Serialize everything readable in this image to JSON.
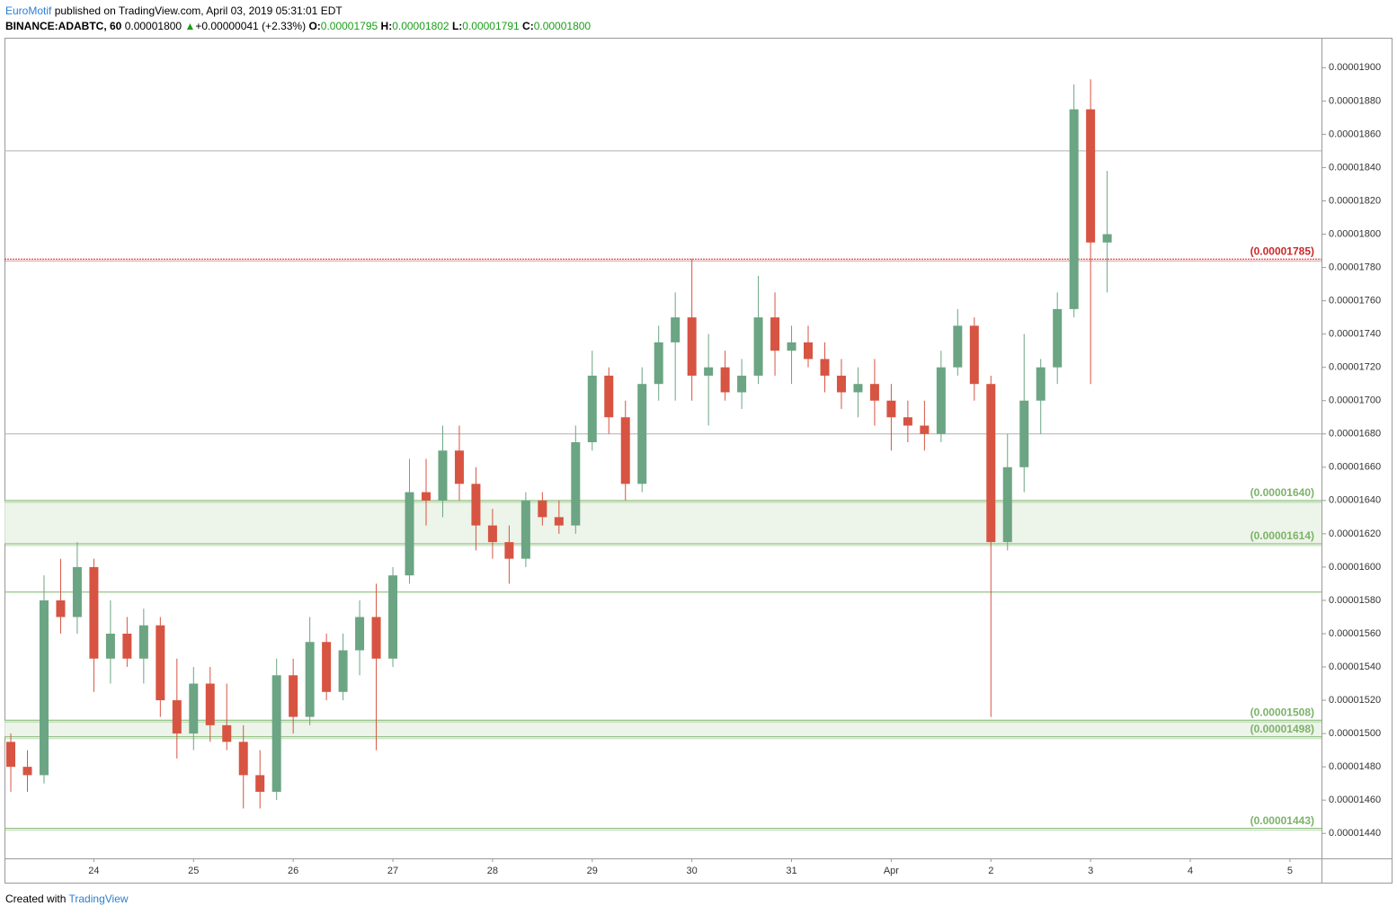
{
  "header": {
    "author": "EuroMotif",
    "published": "published on TradingView.com, April 03, 2019 05:31:01 EDT",
    "symbol": "BINANCE:ADABTC, 60",
    "last": "0.00001800",
    "arrow": "▲",
    "change": "+0.00000041 (+2.33%)",
    "open_label": "O:",
    "open": "0.00001795",
    "high_label": "H:",
    "high": "0.00001802",
    "low_label": "L:",
    "low": "0.00001791",
    "close_label": "C:",
    "close": "0.00001800"
  },
  "footer": {
    "created": "Created with",
    "brand": "TradingView"
  },
  "chart_data": {
    "type": "candlestick",
    "up_color": "#6ba583",
    "down_color": "#d75442",
    "ylim": [
      1.425e-05,
      1.918e-05
    ],
    "xlim": [
      -0.38,
      78.9
    ],
    "yticks": [
      {
        "value": 1.44e-05,
        "label": "0.00001440"
      },
      {
        "value": 1.46e-05,
        "label": "0.00001460"
      },
      {
        "value": 1.48e-05,
        "label": "0.00001480"
      },
      {
        "value": 1.5e-05,
        "label": "0.00001500"
      },
      {
        "value": 1.52e-05,
        "label": "0.00001520"
      },
      {
        "value": 1.54e-05,
        "label": "0.00001540"
      },
      {
        "value": 1.56e-05,
        "label": "0.00001560"
      },
      {
        "value": 1.58e-05,
        "label": "0.00001580"
      },
      {
        "value": 1.6e-05,
        "label": "0.00001600"
      },
      {
        "value": 1.62e-05,
        "label": "0.00001620"
      },
      {
        "value": 1.64e-05,
        "label": "0.00001640"
      },
      {
        "value": 1.66e-05,
        "label": "0.00001660"
      },
      {
        "value": 1.68e-05,
        "label": "0.00001680"
      },
      {
        "value": 1.7e-05,
        "label": "0.00001700"
      },
      {
        "value": 1.72e-05,
        "label": "0.00001720"
      },
      {
        "value": 1.74e-05,
        "label": "0.00001740"
      },
      {
        "value": 1.76e-05,
        "label": "0.00001760"
      },
      {
        "value": 1.78e-05,
        "label": "0.00001780"
      },
      {
        "value": 1.8e-05,
        "label": "0.00001800"
      },
      {
        "value": 1.82e-05,
        "label": "0.00001820"
      },
      {
        "value": 1.84e-05,
        "label": "0.00001840"
      },
      {
        "value": 1.86e-05,
        "label": "0.00001860"
      },
      {
        "value": 1.88e-05,
        "label": "0.00001880"
      },
      {
        "value": 1.9e-05,
        "label": "0.00001900"
      }
    ],
    "xticks": [
      {
        "value": 5,
        "label": "24"
      },
      {
        "value": 11,
        "label": "25"
      },
      {
        "value": 17,
        "label": "26"
      },
      {
        "value": 23,
        "label": "27"
      },
      {
        "value": 29,
        "label": "28"
      },
      {
        "value": 35,
        "label": "29"
      },
      {
        "value": 41,
        "label": "30"
      },
      {
        "value": 47,
        "label": "31"
      },
      {
        "value": 53,
        "label": "Apr"
      },
      {
        "value": 59,
        "label": "2"
      },
      {
        "value": 65,
        "label": "3"
      },
      {
        "value": 71,
        "label": "4"
      },
      {
        "value": 77,
        "label": "5"
      }
    ],
    "lines": [
      {
        "value": 1.85e-05,
        "color": "#b0b0b0"
      },
      {
        "value": 1.68e-05,
        "color": "#b0b0b0"
      },
      {
        "value": 1.585e-05,
        "color": "#7cb36a"
      }
    ],
    "levels": [
      {
        "value": 1.785e-05,
        "label": "(0.00001785)",
        "color": "#cc2a2a"
      },
      {
        "value": 1.64e-05,
        "label": "(0.00001640)",
        "color": "#7cb36a"
      },
      {
        "value": 1.614e-05,
        "label": "(0.00001614)",
        "color": "#7cb36a"
      },
      {
        "value": 1.508e-05,
        "label": "(0.00001508)",
        "color": "#7cb36a"
      },
      {
        "value": 1.498e-05,
        "label": "(0.00001498)",
        "color": "#7cb36a"
      },
      {
        "value": 1.443e-05,
        "label": "(0.00001443)",
        "color": "#7cb36a"
      }
    ],
    "zones": [
      [
        1,
        2
      ],
      [
        3,
        4
      ]
    ],
    "ohlc": [
      [
        1.495e-05,
        1.5e-05,
        1.465e-05,
        1.48e-05
      ],
      [
        1.48e-05,
        1.49e-05,
        1.465e-05,
        1.475e-05
      ],
      [
        1.475e-05,
        1.595e-05,
        1.47e-05,
        1.58e-05
      ],
      [
        1.58e-05,
        1.605e-05,
        1.56e-05,
        1.57e-05
      ],
      [
        1.57e-05,
        1.615e-05,
        1.56e-05,
        1.6e-05
      ],
      [
        1.6e-05,
        1.605e-05,
        1.525e-05,
        1.545e-05
      ],
      [
        1.545e-05,
        1.58e-05,
        1.53e-05,
        1.56e-05
      ],
      [
        1.56e-05,
        1.57e-05,
        1.54e-05,
        1.545e-05
      ],
      [
        1.545e-05,
        1.575e-05,
        1.53e-05,
        1.565e-05
      ],
      [
        1.565e-05,
        1.57e-05,
        1.51e-05,
        1.52e-05
      ],
      [
        1.52e-05,
        1.545e-05,
        1.485e-05,
        1.5e-05
      ],
      [
        1.5e-05,
        1.54e-05,
        1.49e-05,
        1.53e-05
      ],
      [
        1.53e-05,
        1.54e-05,
        1.495e-05,
        1.505e-05
      ],
      [
        1.505e-05,
        1.53e-05,
        1.49e-05,
        1.495e-05
      ],
      [
        1.495e-05,
        1.505e-05,
        1.455e-05,
        1.475e-05
      ],
      [
        1.475e-05,
        1.49e-05,
        1.455e-05,
        1.465e-05
      ],
      [
        1.465e-05,
        1.545e-05,
        1.46e-05,
        1.535e-05
      ],
      [
        1.535e-05,
        1.545e-05,
        1.5e-05,
        1.51e-05
      ],
      [
        1.51e-05,
        1.57e-05,
        1.505e-05,
        1.555e-05
      ],
      [
        1.555e-05,
        1.56e-05,
        1.52e-05,
        1.525e-05
      ],
      [
        1.525e-05,
        1.56e-05,
        1.52e-05,
        1.55e-05
      ],
      [
        1.55e-05,
        1.58e-05,
        1.535e-05,
        1.57e-05
      ],
      [
        1.57e-05,
        1.59e-05,
        1.49e-05,
        1.545e-05
      ],
      [
        1.545e-05,
        1.6e-05,
        1.54e-05,
        1.595e-05
      ],
      [
        1.595e-05,
        1.665e-05,
        1.59e-05,
        1.645e-05
      ],
      [
        1.645e-05,
        1.665e-05,
        1.625e-05,
        1.64e-05
      ],
      [
        1.64e-05,
        1.685e-05,
        1.63e-05,
        1.67e-05
      ],
      [
        1.67e-05,
        1.685e-05,
        1.64e-05,
        1.65e-05
      ],
      [
        1.65e-05,
        1.66e-05,
        1.61e-05,
        1.625e-05
      ],
      [
        1.625e-05,
        1.635e-05,
        1.605e-05,
        1.615e-05
      ],
      [
        1.615e-05,
        1.625e-05,
        1.59e-05,
        1.605e-05
      ],
      [
        1.605e-05,
        1.645e-05,
        1.6e-05,
        1.64e-05
      ],
      [
        1.64e-05,
        1.645e-05,
        1.625e-05,
        1.63e-05
      ],
      [
        1.63e-05,
        1.64e-05,
        1.62e-05,
        1.625e-05
      ],
      [
        1.625e-05,
        1.685e-05,
        1.62e-05,
        1.675e-05
      ],
      [
        1.675e-05,
        1.73e-05,
        1.67e-05,
        1.715e-05
      ],
      [
        1.715e-05,
        1.72e-05,
        1.68e-05,
        1.69e-05
      ],
      [
        1.69e-05,
        1.7e-05,
        1.64e-05,
        1.65e-05
      ],
      [
        1.65e-05,
        1.72e-05,
        1.645e-05,
        1.71e-05
      ],
      [
        1.71e-05,
        1.745e-05,
        1.7e-05,
        1.735e-05
      ],
      [
        1.735e-05,
        1.765e-05,
        1.7e-05,
        1.75e-05
      ],
      [
        1.75e-05,
        1.785e-05,
        1.7e-05,
        1.715e-05
      ],
      [
        1.715e-05,
        1.74e-05,
        1.685e-05,
        1.72e-05
      ],
      [
        1.72e-05,
        1.73e-05,
        1.7e-05,
        1.705e-05
      ],
      [
        1.705e-05,
        1.725e-05,
        1.695e-05,
        1.715e-05
      ],
      [
        1.715e-05,
        1.775e-05,
        1.71e-05,
        1.75e-05
      ],
      [
        1.75e-05,
        1.765e-05,
        1.715e-05,
        1.73e-05
      ],
      [
        1.73e-05,
        1.745e-05,
        1.71e-05,
        1.735e-05
      ],
      [
        1.735e-05,
        1.745e-05,
        1.72e-05,
        1.725e-05
      ],
      [
        1.725e-05,
        1.735e-05,
        1.705e-05,
        1.715e-05
      ],
      [
        1.715e-05,
        1.725e-05,
        1.695e-05,
        1.705e-05
      ],
      [
        1.705e-05,
        1.72e-05,
        1.69e-05,
        1.71e-05
      ],
      [
        1.71e-05,
        1.725e-05,
        1.685e-05,
        1.7e-05
      ],
      [
        1.7e-05,
        1.71e-05,
        1.67e-05,
        1.69e-05
      ],
      [
        1.69e-05,
        1.7e-05,
        1.675e-05,
        1.685e-05
      ],
      [
        1.685e-05,
        1.7e-05,
        1.67e-05,
        1.68e-05
      ],
      [
        1.68e-05,
        1.73e-05,
        1.675e-05,
        1.72e-05
      ],
      [
        1.72e-05,
        1.755e-05,
        1.715e-05,
        1.745e-05
      ],
      [
        1.745e-05,
        1.75e-05,
        1.7e-05,
        1.71e-05
      ],
      [
        1.71e-05,
        1.715e-05,
        1.51e-05,
        1.615e-05
      ],
      [
        1.615e-05,
        1.68e-05,
        1.61e-05,
        1.66e-05
      ],
      [
        1.66e-05,
        1.74e-05,
        1.645e-05,
        1.7e-05
      ],
      [
        1.7e-05,
        1.725e-05,
        1.68e-05,
        1.72e-05
      ],
      [
        1.72e-05,
        1.765e-05,
        1.71e-05,
        1.755e-05
      ],
      [
        1.755e-05,
        1.89e-05,
        1.75e-05,
        1.875e-05
      ],
      [
        1.875e-05,
        1.893e-05,
        1.71e-05,
        1.795e-05
      ],
      [
        1.795e-05,
        1.838e-05,
        1.765e-05,
        1.8e-05
      ]
    ]
  }
}
